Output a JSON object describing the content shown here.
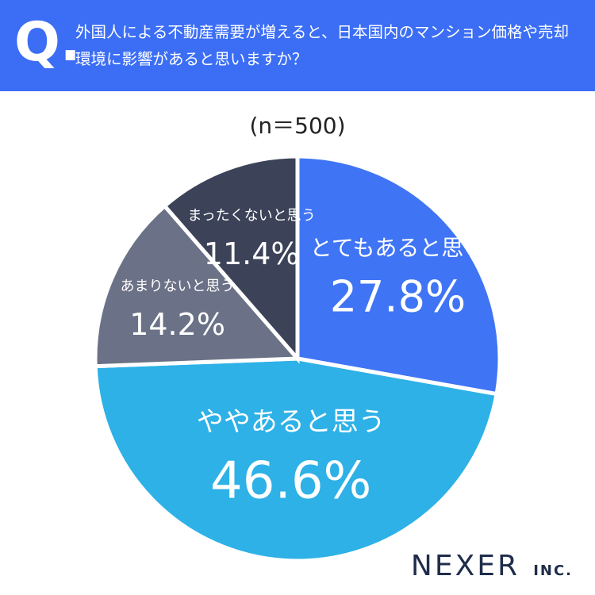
{
  "header": {
    "mark": "Q.",
    "title": "外国人による不動産需要が増えると、日本国内のマンション価格や売却環境に影響があると思いますか？"
  },
  "chart_data": {
    "type": "pie",
    "subtitle": "(n＝500)",
    "categories": [
      "とてもあると思う",
      "ややあると思う",
      "あまりないと思う",
      "まったくないと思う"
    ],
    "values": [
      27.8,
      46.6,
      14.2,
      11.4
    ],
    "value_labels": [
      "27.8%",
      "46.6%",
      "14.2%",
      "11.4%"
    ],
    "colors": [
      "#3f74f5",
      "#2db1e6",
      "#6b7287",
      "#3c4358"
    ]
  },
  "footer": {
    "logo": "NEXER",
    "logo_suffix": "INC."
  }
}
